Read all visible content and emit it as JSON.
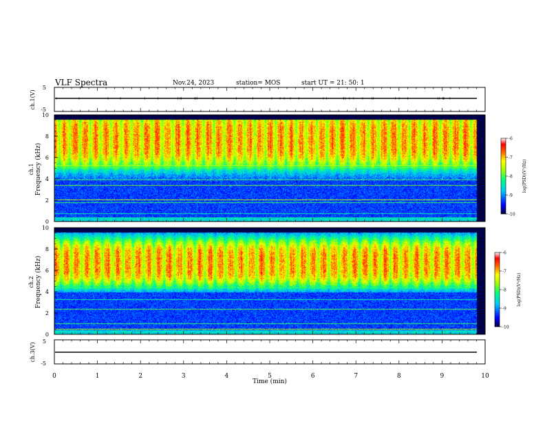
{
  "header": {
    "title": "VLF Spectra",
    "date": "Nov.24, 2023",
    "station": "station= MOS",
    "start": "start  UT  =   21: 50: 1"
  },
  "chart_data": [
    {
      "type": "line",
      "name_label": "ch.1(V)",
      "ylim": [
        -5,
        5
      ],
      "yticks": [
        "5",
        "-5"
      ],
      "xlim": [
        0,
        10
      ],
      "trace_level": 0
    },
    {
      "type": "heatmap",
      "ylabel_top": "ch.1",
      "ylabel": "Frequency  (kHz)",
      "ylim": [
        0,
        10
      ],
      "yticks": [
        "10",
        "8",
        "6",
        "4",
        "2",
        "0"
      ],
      "xlim": [
        0,
        10
      ],
      "band_peak_khz": [
        6,
        9.5
      ],
      "cutoff_khz": 9.6,
      "colorbar": {
        "label": "log(PSD)(V²/Hz)",
        "ticks": [
          "-6",
          "-7",
          "-8",
          "-9",
          "-10"
        ],
        "range": [
          -10,
          -6
        ]
      }
    },
    {
      "type": "heatmap",
      "ylabel_top": "ch.2",
      "ylabel": "Frequency  (kHz)",
      "ylim": [
        0,
        10
      ],
      "yticks": [
        "10",
        "8",
        "6",
        "4",
        "2",
        "0"
      ],
      "xlim": [
        0,
        10
      ],
      "band_peak_khz": [
        5.5,
        8
      ],
      "cutoff_khz": 9.6,
      "colorbar": {
        "label": "log(PSD)(V²/Hz)",
        "ticks": [
          "-6",
          "-7",
          "-8",
          "-9",
          "-10"
        ],
        "range": [
          -10,
          -6
        ]
      }
    },
    {
      "type": "line",
      "name_label": "ch.3(V)",
      "ylim": [
        -5,
        5
      ],
      "yticks": [
        "5",
        "-5"
      ],
      "xlim": [
        0,
        10
      ],
      "trace_level": 0
    }
  ],
  "xaxis": {
    "label": "Time  (min)",
    "ticks": [
      "0",
      "1",
      "2",
      "3",
      "4",
      "5",
      "6",
      "7",
      "8",
      "9",
      "10"
    ],
    "data_end_min": 9.8
  },
  "colors": {
    "colormap": [
      "#000080",
      "#0000ff",
      "#00a0ff",
      "#00ffff",
      "#00ff80",
      "#80ff00",
      "#ffff00",
      "#ff8000",
      "#ff0000",
      "#ffffff"
    ],
    "axis": "#000000",
    "trace": "#000000"
  }
}
